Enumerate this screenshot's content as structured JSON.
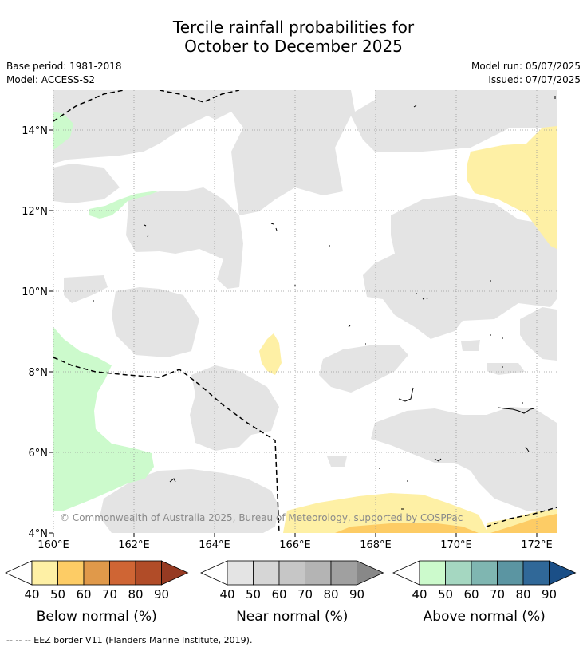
{
  "title": {
    "line1": "Tercile rainfall probabilities for",
    "line2": "October to December 2025"
  },
  "meta": {
    "base_period": "Base period: 1981-2018",
    "model": "Model: ACCESS-S2",
    "model_run": "Model run: 05/07/2025",
    "issued": "Issued: 07/07/2025"
  },
  "map": {
    "lat_labels": [
      "14°N",
      "12°N",
      "10°N",
      "8°N",
      "6°N",
      "4°N"
    ],
    "lon_labels": [
      "160°E",
      "162°E",
      "164°E",
      "166°E",
      "168°E",
      "170°E",
      "172°E"
    ],
    "copyright": "© Commonwealth of Australia 2025, Bureau of Meteorology, supported by COSPPac"
  },
  "legends": [
    {
      "id": "below",
      "title": "Below normal (%)",
      "ticks": [
        "40",
        "50",
        "60",
        "70",
        "80",
        "90"
      ],
      "colors": [
        "#fef0a5",
        "#fdcc65",
        "#e0994a",
        "#cf6534",
        "#b14c28",
        "#963a22"
      ]
    },
    {
      "id": "near",
      "title": "Near normal (%)",
      "ticks": [
        "40",
        "50",
        "60",
        "70",
        "80",
        "90"
      ],
      "colors": [
        "#e4e4e4",
        "#d6d6d6",
        "#c6c6c6",
        "#b4b4b4",
        "#a0a0a0",
        "#888888"
      ]
    },
    {
      "id": "above",
      "title": "Above normal (%)",
      "ticks": [
        "40",
        "50",
        "60",
        "70",
        "80",
        "90"
      ],
      "colors": [
        "#ccfacc",
        "#a5d7c1",
        "#7fb6b1",
        "#5b95a2",
        "#306898",
        "#1b4f87"
      ]
    }
  ],
  "footnote": "-- -- -- EEZ border V11 (Flanders Marine Institute, 2019)."
}
